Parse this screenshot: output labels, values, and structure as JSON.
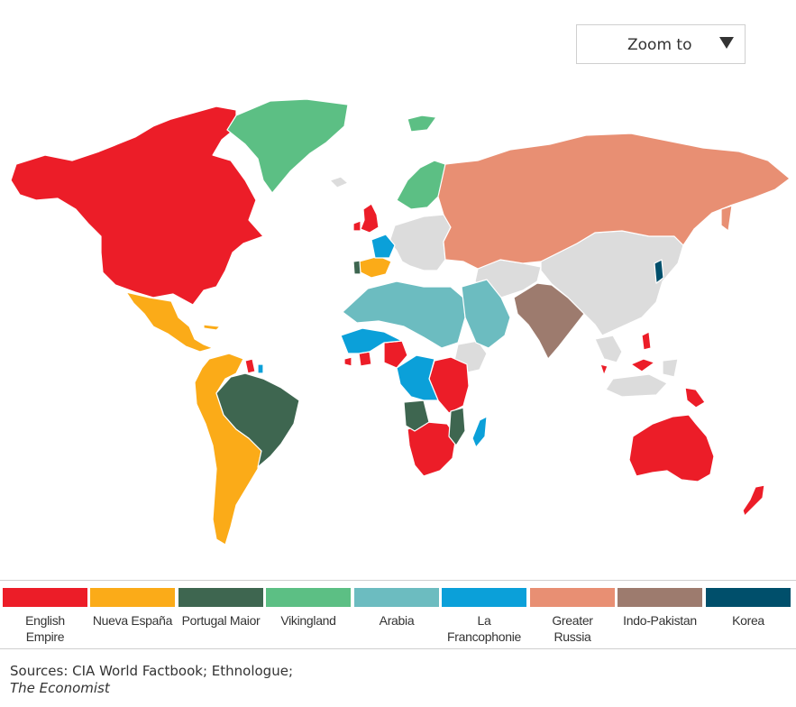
{
  "zoom_control": {
    "label": "Zoom to",
    "icon": "triangle-down-icon"
  },
  "map": {
    "regions": [
      {
        "key": "english",
        "name": "English Empire",
        "color": "#ec1d28"
      },
      {
        "key": "espana",
        "name": "Nueva España",
        "color": "#fbab18"
      },
      {
        "key": "portugal",
        "name": "Portugal Maior",
        "color": "#3e6650"
      },
      {
        "key": "viking",
        "name": "Vikingland",
        "color": "#5cbf84"
      },
      {
        "key": "arabia",
        "name": "Arabia",
        "color": "#6cbcc0"
      },
      {
        "key": "franco",
        "name": "La Francophonie",
        "color": "#0ba0d9"
      },
      {
        "key": "russia",
        "name": "Greater Russia",
        "color": "#e88f73"
      },
      {
        "key": "indo",
        "name": "Indo-Pakistan",
        "color": "#9d7b6e"
      },
      {
        "key": "korea",
        "name": "Korea",
        "color": "#004f6b"
      }
    ],
    "no_data_color": "#dcdcdc"
  },
  "legend": {
    "items": [
      {
        "line1": "English",
        "line2": "Empire",
        "color": "#ec1d28"
      },
      {
        "line1": "Nueva España",
        "line2": "",
        "color": "#fbab18"
      },
      {
        "line1": "Portugal Maior",
        "line2": "",
        "color": "#3e6650"
      },
      {
        "line1": "Vikingland",
        "line2": "",
        "color": "#5cbf84"
      },
      {
        "line1": "Arabia",
        "line2": "",
        "color": "#6cbcc0"
      },
      {
        "line1": "La",
        "line2": "Francophonie",
        "color": "#0ba0d9"
      },
      {
        "line1": "Greater",
        "line2": "Russia",
        "color": "#e88f73"
      },
      {
        "line1": "Indo-Pakistan",
        "line2": "",
        "color": "#9d7b6e"
      },
      {
        "line1": "Korea",
        "line2": "",
        "color": "#004f6b"
      }
    ]
  },
  "source": {
    "text": "Sources: CIA World Factbook; Ethnologue;",
    "publication": "The Economist"
  }
}
